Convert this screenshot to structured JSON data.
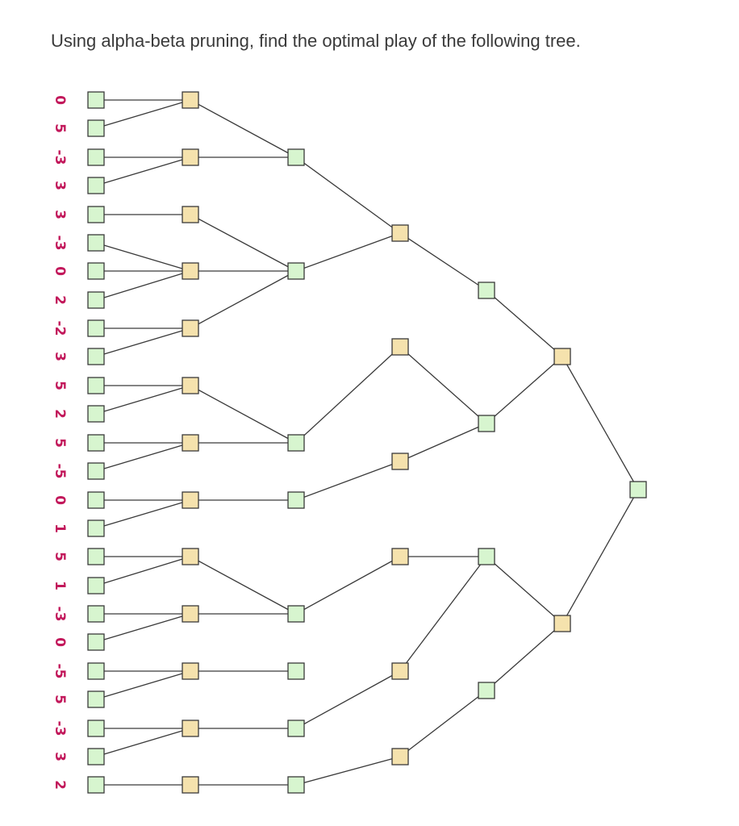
{
  "question": "Using alpha-beta pruning, find the optimal play of the following tree.",
  "colors": {
    "max_node_fill": "#d7f5cf",
    "min_node_fill": "#f5e2ad",
    "edge": "#3a3a3a",
    "leaf_value_text": "#c2185b"
  },
  "leaf_values": [
    "0",
    "5",
    "-3",
    "3",
    "3",
    "-3",
    "0",
    "2",
    "-2",
    "3",
    "5",
    "2",
    "5",
    "-5",
    "0",
    "1",
    "5",
    "1",
    "-3",
    "0",
    "-5",
    "5",
    "-3",
    "3",
    "2"
  ],
  "tree": {
    "root": "max",
    "levels": 7,
    "level_types": [
      "max",
      "min",
      "max",
      "min",
      "max",
      "min",
      "max"
    ]
  }
}
